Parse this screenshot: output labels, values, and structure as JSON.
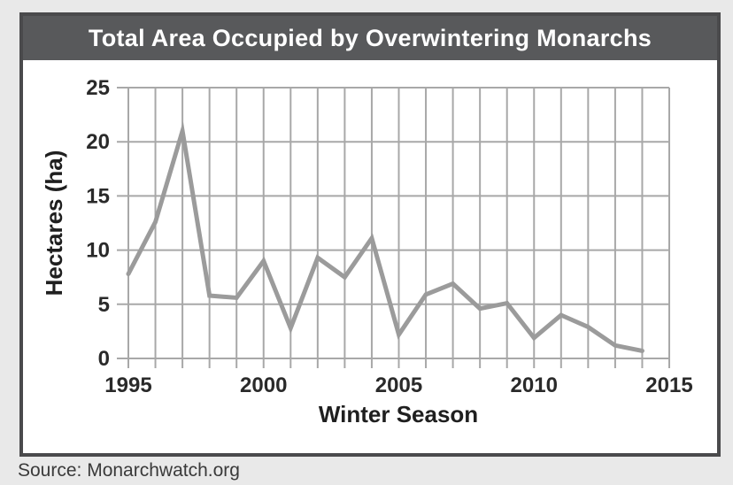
{
  "page": {
    "background_color": "#e9e9e9"
  },
  "chart": {
    "title_bar_color": "#58595b",
    "frame_border_color": "#4a4a4c",
    "plot_background": "#ffffff",
    "grid_color": "#a8a8a8",
    "line_color": "#9b9b9b",
    "tick_text_color": "#2a2a2a",
    "title_text_color": "#ffffff"
  },
  "chart_data": {
    "type": "line",
    "title": "Total Area Occupied by Overwintering Monarchs",
    "xlabel": "Winter Season",
    "ylabel": "Hectares (ha)",
    "source": "Source: Monarchwatch.org",
    "x": [
      1995,
      1996,
      1997,
      1998,
      1999,
      2000,
      2001,
      2002,
      2003,
      2004,
      2005,
      2006,
      2007,
      2008,
      2009,
      2010,
      2011,
      2012,
      2013,
      2014
    ],
    "values": [
      7.8,
      12.6,
      21.0,
      5.8,
      5.6,
      9.0,
      2.8,
      9.3,
      7.5,
      11.1,
      2.2,
      5.9,
      6.9,
      4.6,
      5.1,
      1.9,
      4.0,
      2.9,
      1.2,
      0.7
    ],
    "xlim": [
      1995,
      2015
    ],
    "ylim": [
      0,
      25
    ],
    "x_tick_interval": 1,
    "x_tick_labels": [
      1995,
      2000,
      2005,
      2010,
      2015
    ],
    "y_ticks": [
      0,
      5,
      10,
      15,
      20,
      25
    ],
    "grid": true,
    "legend_position": "none"
  }
}
